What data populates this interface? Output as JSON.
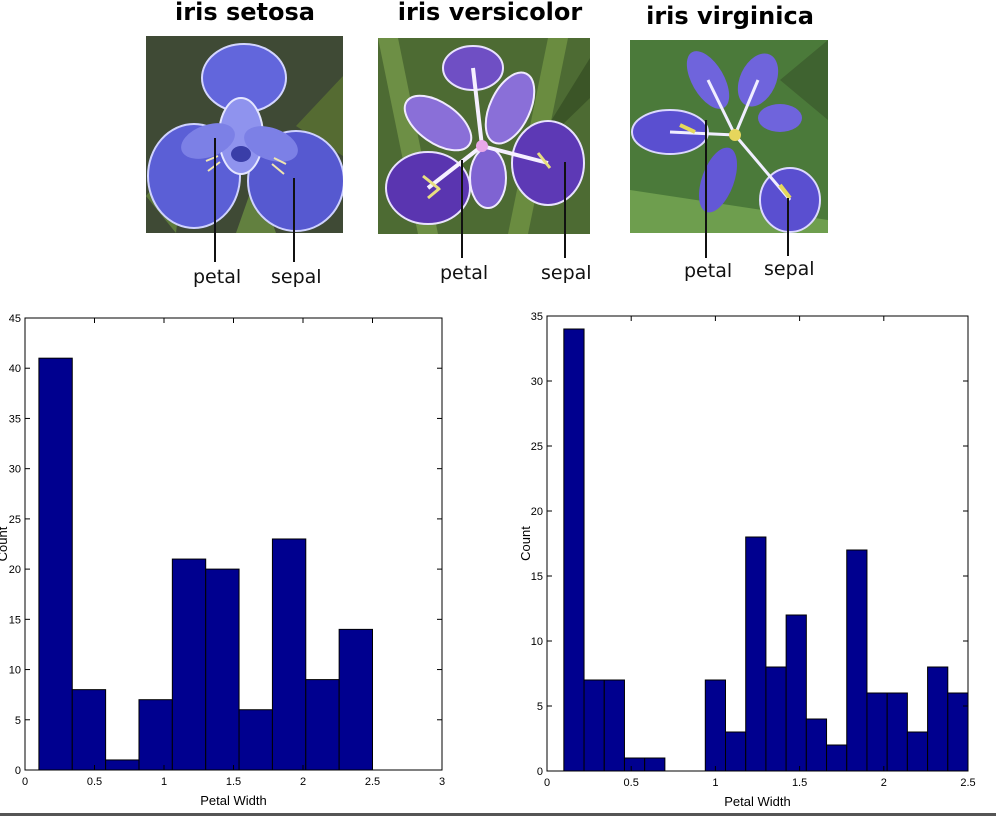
{
  "flowers": [
    {
      "title": "iris setosa",
      "petal_label": "petal",
      "sepal_label": "sepal",
      "icon": "iris-setosa-photo"
    },
    {
      "title": "iris versicolor",
      "petal_label": "petal",
      "sepal_label": "sepal",
      "icon": "iris-versicolor-photo"
    },
    {
      "title": "iris virginica",
      "petal_label": "petal",
      "sepal_label": "sepal",
      "icon": "iris-virginica-photo"
    }
  ],
  "colors": {
    "bar_fill": "#00008f",
    "bar_edge": "#000000"
  },
  "chart_data": [
    {
      "type": "bar",
      "title": "",
      "xlabel": "Petal Width",
      "ylabel": "Count",
      "xlim": [
        0,
        3
      ],
      "ylim": [
        0,
        45
      ],
      "xticks": [
        0,
        0.5,
        1,
        1.5,
        2,
        2.5,
        3
      ],
      "xtick_labels": [
        "0",
        "0.5",
        "1",
        "1.5",
        "2",
        "2.5",
        "3"
      ],
      "yticks": [
        0,
        5,
        10,
        15,
        20,
        25,
        30,
        35,
        40,
        45
      ],
      "ytick_labels": [
        "0",
        "5",
        "10",
        "15",
        "20",
        "25",
        "30",
        "35",
        "40",
        "45"
      ],
      "bin_edges": [
        0.1,
        0.34,
        0.58,
        0.82,
        1.06,
        1.3,
        1.54,
        1.78,
        2.02,
        2.26,
        2.5
      ],
      "values": [
        41,
        8,
        1,
        7,
        21,
        20,
        6,
        23,
        9,
        14
      ]
    },
    {
      "type": "bar",
      "title": "",
      "xlabel": "Petal Width",
      "ylabel": "Count",
      "xlim": [
        0,
        2.5
      ],
      "ylim": [
        0,
        35
      ],
      "xticks": [
        0,
        0.5,
        1,
        1.5,
        2,
        2.5
      ],
      "xtick_labels": [
        "0",
        "0.5",
        "1",
        "1.5",
        "2",
        "2.5"
      ],
      "yticks": [
        0,
        5,
        10,
        15,
        20,
        25,
        30,
        35
      ],
      "ytick_labels": [
        "0",
        "5",
        "10",
        "15",
        "20",
        "25",
        "30",
        "35"
      ],
      "bin_edges": [
        0.1,
        0.22,
        0.34,
        0.46,
        0.58,
        0.7,
        0.82,
        0.94,
        1.06,
        1.18,
        1.3,
        1.42,
        1.54,
        1.66,
        1.78,
        1.9,
        2.02,
        2.14,
        2.26,
        2.38,
        2.5
      ],
      "values": [
        34,
        7,
        7,
        1,
        1,
        0,
        0,
        7,
        3,
        18,
        8,
        12,
        4,
        2,
        17,
        6,
        6,
        3,
        8,
        6
      ]
    }
  ]
}
